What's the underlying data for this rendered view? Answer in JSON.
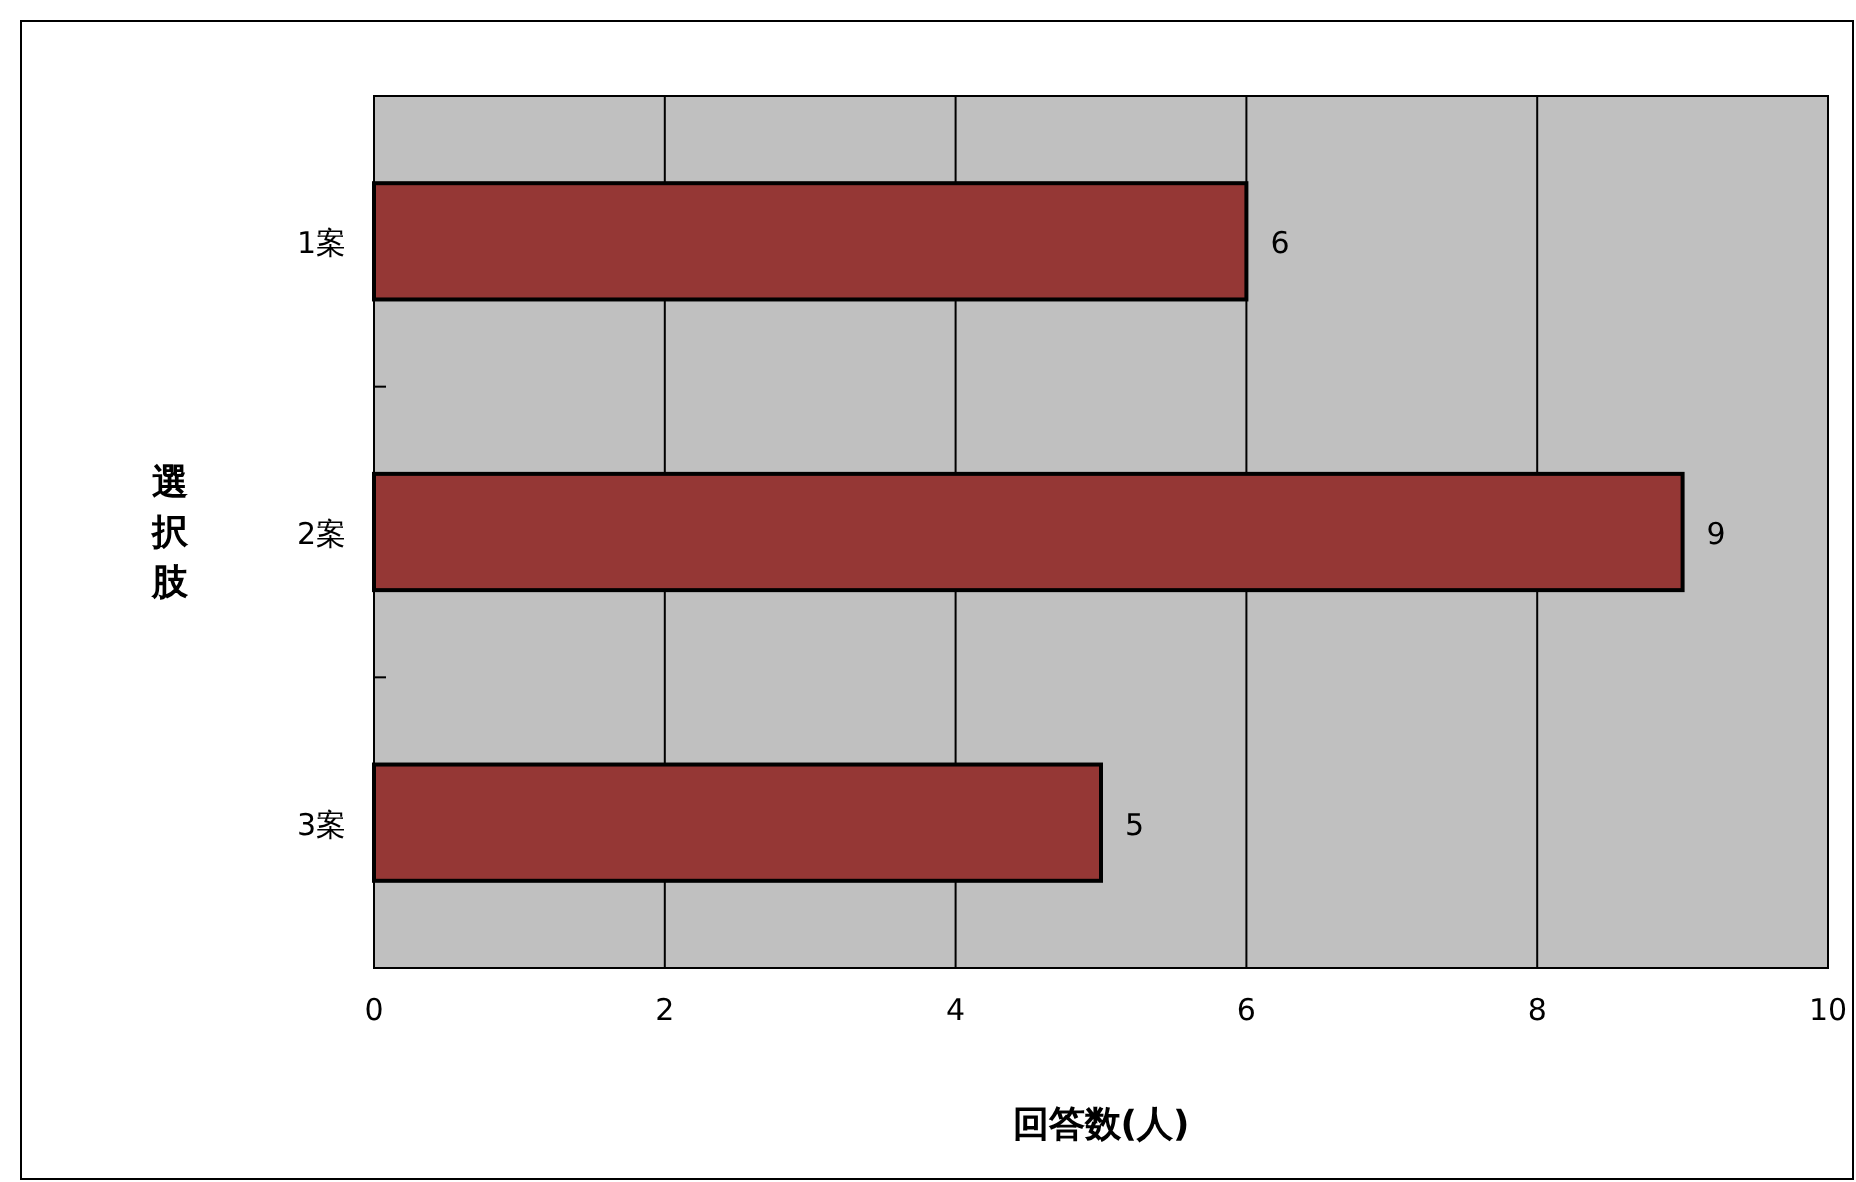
{
  "chart_data": {
    "type": "bar",
    "orientation": "horizontal",
    "categories": [
      "1案",
      "2案",
      "3案"
    ],
    "values": [
      6,
      9,
      5
    ],
    "color": "#953735",
    "xlim": [
      0,
      10
    ],
    "xticks": [
      0,
      2,
      4,
      6,
      8,
      10
    ],
    "grid": "x",
    "data_labels": true,
    "xlabel": "回答数(人)",
    "ylabel": "選択肢"
  }
}
